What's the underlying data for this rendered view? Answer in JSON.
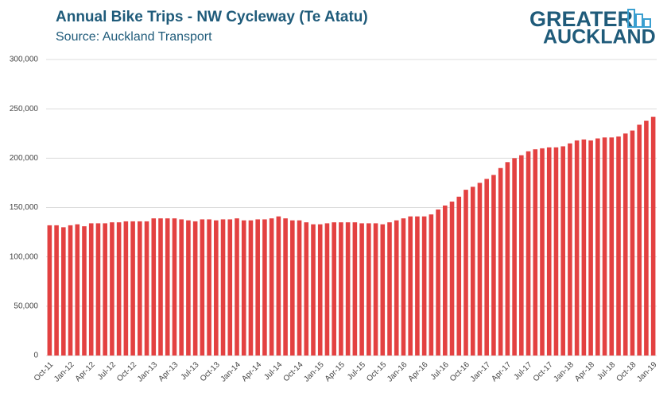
{
  "chart_data": {
    "type": "bar",
    "title": "Annual Bike Trips - NW Cycleway (Te Atatu)",
    "subtitle": "Source: Auckland Transport",
    "logo": [
      "GREATER",
      "AUCKLAND"
    ],
    "categories": [
      "Oct-11",
      null,
      null,
      "Jan-12",
      null,
      null,
      "Apr-12",
      null,
      null,
      "Jul-12",
      null,
      null,
      "Oct-12",
      null,
      null,
      "Jan-13",
      null,
      null,
      "Apr-13",
      null,
      null,
      "Jul-13",
      null,
      null,
      "Oct-13",
      null,
      null,
      "Jan-14",
      null,
      null,
      "Apr-14",
      null,
      null,
      "Jul-14",
      null,
      null,
      "Oct-14",
      null,
      null,
      "Jan-15",
      null,
      null,
      "Apr-15",
      null,
      null,
      "Jul-15",
      null,
      null,
      "Oct-15",
      null,
      null,
      "Jan-16",
      null,
      null,
      "Apr-16",
      null,
      null,
      "Jul-16",
      null,
      null,
      "Oct-16",
      null,
      null,
      "Jan-17",
      null,
      null,
      "Apr-17",
      null,
      null,
      "Jul-17",
      null,
      null,
      "Oct-17",
      null,
      null,
      "Jan-18",
      null,
      null,
      "Apr-18",
      null,
      null,
      "Jul-18",
      null,
      null,
      "Oct-18",
      null,
      null,
      "Jan-19"
    ],
    "values": [
      132000,
      132000,
      130000,
      132000,
      133000,
      131000,
      134000,
      134000,
      134000,
      135000,
      135000,
      136000,
      136000,
      136000,
      136000,
      139000,
      139000,
      139000,
      139000,
      138000,
      137000,
      136000,
      138000,
      138000,
      137000,
      138000,
      138000,
      139000,
      137000,
      137000,
      138000,
      138000,
      139000,
      141000,
      139000,
      137000,
      137000,
      135000,
      133000,
      133000,
      134000,
      135000,
      135000,
      135000,
      135000,
      134000,
      134000,
      134000,
      133000,
      135000,
      137000,
      139000,
      141000,
      141000,
      141000,
      143000,
      148000,
      152000,
      156000,
      161000,
      168000,
      171000,
      175000,
      179000,
      183000,
      190000,
      196000,
      200000,
      203000,
      207000,
      209000,
      210000,
      211000,
      211000,
      212000,
      215000,
      218000,
      219000,
      218000,
      220000,
      221000,
      221000,
      222000,
      225000,
      228000,
      234000,
      238000,
      242000
    ],
    "color": "#e34141",
    "ylim": [
      0,
      300000
    ],
    "yticks": [
      0,
      {
        "value": 50000,
        "label": "50,000"
      },
      {
        "value": 100000,
        "label": "100,000"
      },
      {
        "value": 150000,
        "label": "150,000"
      },
      {
        "value": 200000,
        "label": "200,000"
      },
      {
        "value": 250000,
        "label": "250,000"
      },
      {
        "value": 300000,
        "label": "300,000"
      }
    ],
    "grid": true
  }
}
